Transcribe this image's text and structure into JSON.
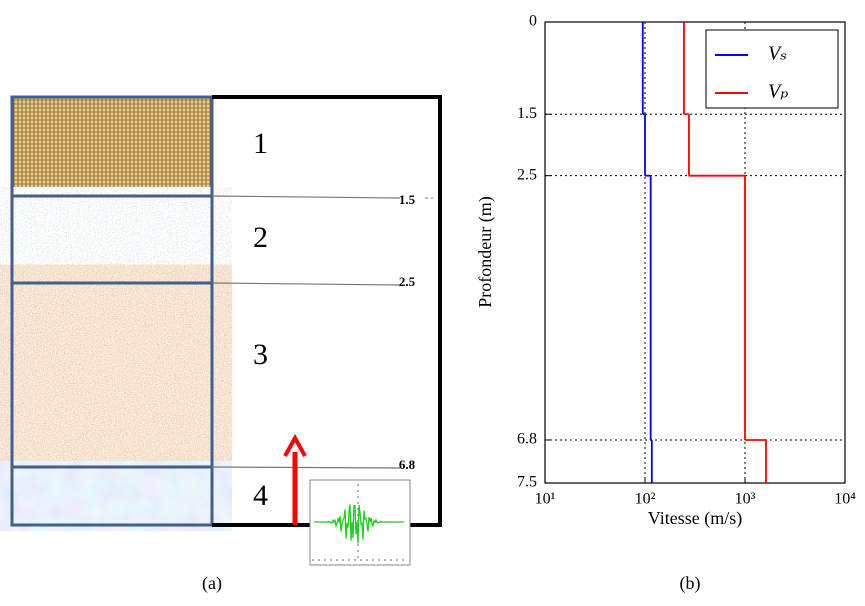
{
  "diagram": {
    "layers": [
      "1",
      "2",
      "3",
      "4"
    ],
    "interfaces": [
      "1.5",
      "2.5",
      "6.8"
    ],
    "caption": "(a)"
  },
  "chart_data": {
    "type": "step",
    "caption": "(b)",
    "xlabel": "Vitesse (m/s)",
    "ylabel": "Profondeur (m)",
    "xscale": "log",
    "xlim": [
      10,
      10000
    ],
    "xticks": [
      {
        "value": 10,
        "label": "10¹"
      },
      {
        "value": 100,
        "label": "10²"
      },
      {
        "value": 1000,
        "label": "10³"
      },
      {
        "value": 10000,
        "label": "10⁴"
      }
    ],
    "ylim": [
      0,
      7.5
    ],
    "yinverted": true,
    "yticks": [
      0,
      1.5,
      2.5,
      6.8,
      7.5
    ],
    "grid": true,
    "legend": "upper right",
    "depth_bounds": [
      0,
      1.5,
      2.5,
      6.8,
      7.5
    ],
    "series": [
      {
        "name": "Vₛ",
        "color": "#0000ff",
        "values": [
          95,
          100,
          114,
          117
        ]
      },
      {
        "name": "Vₚ",
        "color": "#ff0000",
        "values": [
          245,
          275,
          1000,
          1620
        ]
      }
    ]
  }
}
